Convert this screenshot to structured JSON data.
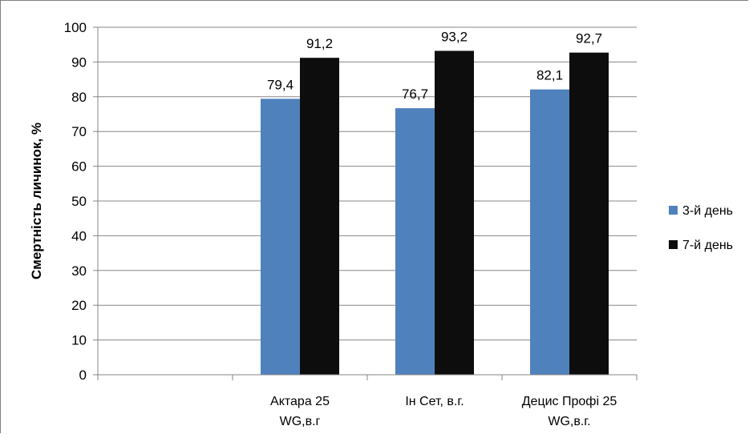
{
  "chart_data": {
    "type": "bar",
    "categories": [
      "",
      "Актара 25 WG,в.г",
      "Ін Сет, в.г.",
      "Децис Профі 25 WG,в.г."
    ],
    "category_lines": [
      [
        ""
      ],
      [
        "Актара 25",
        "WG,в.г"
      ],
      [
        "Ін Сет, в.г."
      ],
      [
        "Децис Профі 25",
        "WG,в.г."
      ]
    ],
    "series": [
      {
        "name": "3-й день",
        "values": [
          null,
          79.4,
          76.7,
          82.1
        ],
        "labels": [
          "",
          "79,4",
          "76,7",
          "82,1"
        ],
        "color": "#4f81bd"
      },
      {
        "name": "7-й день",
        "values": [
          null,
          91.2,
          93.2,
          92.7
        ],
        "labels": [
          "",
          "91,2",
          "93,2",
          "92,7"
        ],
        "color": "#0d0d0d"
      }
    ],
    "title": "",
    "xlabel": "",
    "ylabel": "Смертність личинок, %",
    "ylim": [
      0,
      100
    ],
    "yticks": [
      0,
      10,
      20,
      30,
      40,
      50,
      60,
      70,
      80,
      90,
      100
    ],
    "grid": true,
    "legend": "right"
  }
}
